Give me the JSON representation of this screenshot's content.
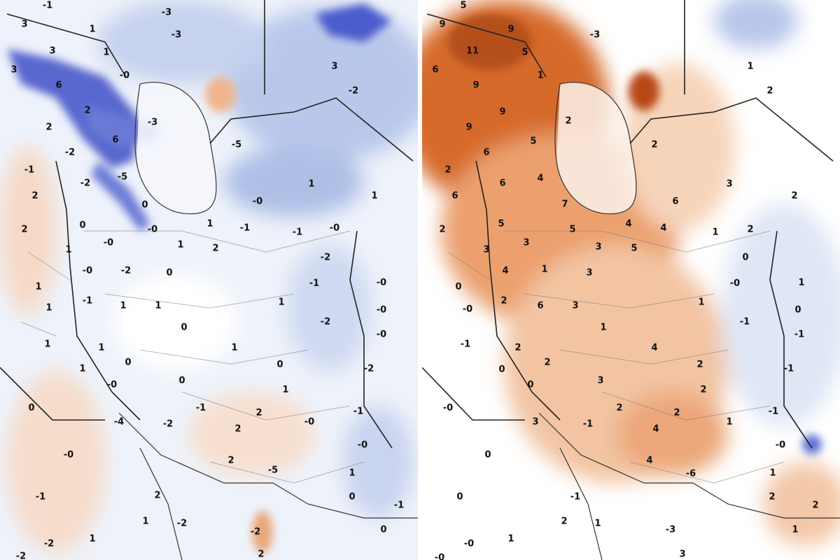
{
  "panels": [
    {
      "labels": [
        "-1",
        "3",
        "1",
        "-3",
        "3",
        "1",
        "3",
        "-0",
        "-3",
        "3",
        "-2",
        "6",
        "2",
        "-3",
        "2",
        "6",
        "-5",
        "-2",
        "-1",
        "-2",
        "-5",
        "1",
        "1",
        "2",
        "0",
        "-0",
        "2",
        "0",
        "1",
        "-1",
        "-0",
        "-1",
        "-0",
        "1",
        "-0",
        "1",
        "2",
        "-2",
        "-0",
        "-2",
        "0",
        "-1",
        "-0",
        "1",
        "-1",
        "1",
        "1",
        "1",
        "1",
        "-0",
        "-2",
        "0",
        "-0",
        "1",
        "1",
        "1",
        "0",
        "0",
        "-2",
        "1",
        "0",
        "-0",
        "1",
        "0",
        "-1",
        "2",
        "-1",
        "-4",
        "-2",
        "2",
        "-0",
        "-0",
        "-0",
        "2",
        "-5",
        "1",
        "-1",
        "2",
        "0",
        "-1",
        "1",
        "-2",
        "0",
        "1",
        "-2",
        "-2",
        "-2",
        "2"
      ]
    },
    {
      "labels": [
        "5",
        "9",
        "9",
        "-3",
        "11",
        "5",
        "6",
        "1",
        "9",
        "1",
        "2",
        "9",
        "2",
        "9",
        "5",
        "6",
        "2",
        "2",
        "4",
        "6",
        "3",
        "2",
        "6",
        "7",
        "6",
        "2",
        "5",
        "4",
        "4",
        "1",
        "2",
        "5",
        "3",
        "3",
        "3",
        "5",
        "0",
        "4",
        "1",
        "3",
        "-0",
        "1",
        "0",
        "-0",
        "2",
        "6",
        "3",
        "1",
        "0",
        "-1",
        "1",
        "-1",
        "-1",
        "2",
        "4",
        "0",
        "2",
        "2",
        "-1",
        "0",
        "3",
        "2",
        "-0",
        "2",
        "2",
        "-1",
        "3",
        "-1",
        "4",
        "1",
        "0",
        "-0",
        "4",
        "-6",
        "1",
        "0",
        "-1",
        "2",
        "2",
        "2",
        "1",
        "-3",
        "1",
        "1",
        "-0",
        "-0",
        "3"
      ]
    }
  ]
}
